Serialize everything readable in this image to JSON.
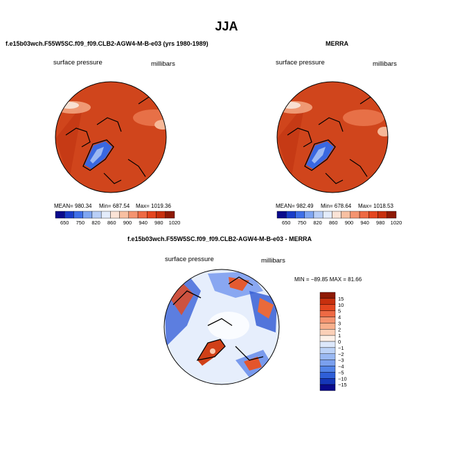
{
  "page_title": "JJA",
  "chart_data": [
    {
      "type": "heatmap",
      "projection": "polar-stereographic",
      "title": "f.e15b03wch.F55W5SC.f09_f09.CLB2-AGW4-M-B-e03 (yrs 1980-1989)",
      "left_label": "surface pressure",
      "right_label": "millibars",
      "stats": {
        "mean": "MEAN= 980.34",
        "min": "Min= 687.54",
        "max": "Max= 1019.36"
      },
      "colorbar": {
        "levels": [
          "650",
          "750",
          "820",
          "860",
          "900",
          "940",
          "980",
          "1020"
        ],
        "colors": [
          "#0a0a8c",
          "#1a3cc8",
          "#3f6fe8",
          "#7fa6f2",
          "#b9cff7",
          "#e3ecfb",
          "#fbe3d6",
          "#f8c0a2",
          "#f49470",
          "#ee6a44",
          "#e4461f",
          "#c8300e",
          "#8e1a05"
        ]
      }
    },
    {
      "type": "heatmap",
      "projection": "polar-stereographic",
      "title": "MERRA",
      "left_label": "surface pressure",
      "right_label": "millibars",
      "stats": {
        "mean": "MEAN= 982.49",
        "min": "Min= 678.64",
        "max": "Max= 1018.53"
      },
      "colorbar": {
        "levels": [
          "650",
          "750",
          "820",
          "860",
          "900",
          "940",
          "980",
          "1020"
        ],
        "colors": [
          "#0a0a8c",
          "#1a3cc8",
          "#3f6fe8",
          "#7fa6f2",
          "#b9cff7",
          "#e3ecfb",
          "#fbe3d6",
          "#f8c0a2",
          "#f49470",
          "#ee6a44",
          "#e4461f",
          "#c8300e",
          "#8e1a05"
        ]
      }
    },
    {
      "type": "heatmap",
      "projection": "polar-stereographic",
      "title": "f.e15b03wch.F55W5SC.f09_f09.CLB2-AGW4-M-B-e03 - MERRA",
      "left_label": "surface pressure",
      "right_label": "millibars",
      "stats": {
        "minmax": "MIN = −89.85 MAX = 81.66"
      },
      "colorbar": {
        "levels": [
          "15",
          "10",
          "5",
          "4",
          "3",
          "2",
          "1",
          "0",
          "−1",
          "−2",
          "−3",
          "−4",
          "−5",
          "−10",
          "−15"
        ],
        "colors": [
          "#8e1a05",
          "#c8300e",
          "#e4461f",
          "#ee6a44",
          "#f49470",
          "#f8b08c",
          "#fbd0b8",
          "#fdf0e8",
          "#dde8fb",
          "#bcd2f7",
          "#9ab9f3",
          "#7aa0ee",
          "#5283e7",
          "#2f5fd8",
          "#1536b8",
          "#0a0a8c"
        ]
      }
    }
  ]
}
